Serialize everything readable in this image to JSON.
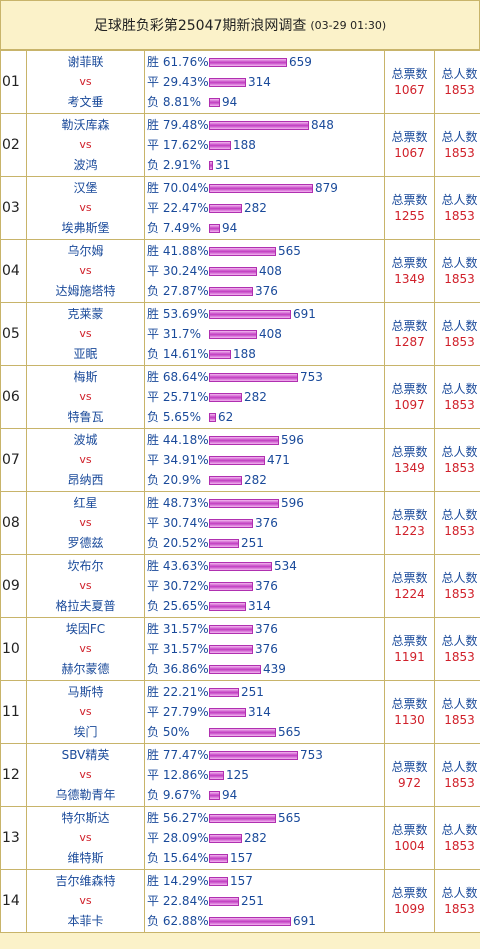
{
  "header": {
    "title": "足球胜负彩第25047期新浪网调查",
    "date": "(03-29 01:30)"
  },
  "labels": {
    "win": "胜",
    "draw": "平",
    "loss": "负",
    "vs": "vs",
    "total_votes": "总票数",
    "total_people": "总人数"
  },
  "matches": [
    {
      "no": "01",
      "home": "谢菲联",
      "away": "考文垂",
      "win_pct": "61.76%",
      "draw_pct": "29.43%",
      "loss_pct": "8.81%",
      "win": 659,
      "draw": 314,
      "loss": 94,
      "votes": "1067",
      "people": "1853"
    },
    {
      "no": "02",
      "home": "勒沃库森",
      "away": "波鸿",
      "win_pct": "79.48%",
      "draw_pct": "17.62%",
      "loss_pct": "2.91%",
      "win": 848,
      "draw": 188,
      "loss": 31,
      "votes": "1067",
      "people": "1853"
    },
    {
      "no": "03",
      "home": "汉堡",
      "away": "埃弗斯堡",
      "win_pct": "70.04%",
      "draw_pct": "22.47%",
      "loss_pct": "7.49%",
      "win": 879,
      "draw": 282,
      "loss": 94,
      "votes": "1255",
      "people": "1853"
    },
    {
      "no": "04",
      "home": "乌尔姆",
      "away": "达姆施塔特",
      "win_pct": "41.88%",
      "draw_pct": "30.24%",
      "loss_pct": "27.87%",
      "win": 565,
      "draw": 408,
      "loss": 376,
      "votes": "1349",
      "people": "1853"
    },
    {
      "no": "05",
      "home": "克莱蒙",
      "away": "亚眠",
      "win_pct": "53.69%",
      "draw_pct": "31.7%",
      "loss_pct": "14.61%",
      "win": 691,
      "draw": 408,
      "loss": 188,
      "votes": "1287",
      "people": "1853"
    },
    {
      "no": "06",
      "home": "梅斯",
      "away": "特鲁瓦",
      "win_pct": "68.64%",
      "draw_pct": "25.71%",
      "loss_pct": "5.65%",
      "win": 753,
      "draw": 282,
      "loss": 62,
      "votes": "1097",
      "people": "1853"
    },
    {
      "no": "07",
      "home": "波城",
      "away": "昂纳西",
      "win_pct": "44.18%",
      "draw_pct": "34.91%",
      "loss_pct": "20.9%",
      "win": 596,
      "draw": 471,
      "loss": 282,
      "votes": "1349",
      "people": "1853"
    },
    {
      "no": "08",
      "home": "红星",
      "away": "罗德兹",
      "win_pct": "48.73%",
      "draw_pct": "30.74%",
      "loss_pct": "20.52%",
      "win": 596,
      "draw": 376,
      "loss": 251,
      "votes": "1223",
      "people": "1853"
    },
    {
      "no": "09",
      "home": "坎布尔",
      "away": "格拉夫夏普",
      "win_pct": "43.63%",
      "draw_pct": "30.72%",
      "loss_pct": "25.65%",
      "win": 534,
      "draw": 376,
      "loss": 314,
      "votes": "1224",
      "people": "1853"
    },
    {
      "no": "10",
      "home": "埃因FC",
      "away": "赫尔蒙德",
      "win_pct": "31.57%",
      "draw_pct": "31.57%",
      "loss_pct": "36.86%",
      "win": 376,
      "draw": 376,
      "loss": 439,
      "votes": "1191",
      "people": "1853"
    },
    {
      "no": "11",
      "home": "马斯特",
      "away": "埃门",
      "win_pct": "22.21%",
      "draw_pct": "27.79%",
      "loss_pct": "50%",
      "win": 251,
      "draw": 314,
      "loss": 565,
      "votes": "1130",
      "people": "1853"
    },
    {
      "no": "12",
      "home": "SBV精英",
      "away": "乌德勒青年",
      "win_pct": "77.47%",
      "draw_pct": "12.86%",
      "loss_pct": "9.67%",
      "win": 753,
      "draw": 125,
      "loss": 94,
      "votes": "972",
      "people": "1853"
    },
    {
      "no": "13",
      "home": "特尔斯达",
      "away": "维特斯",
      "win_pct": "56.27%",
      "draw_pct": "28.09%",
      "loss_pct": "15.64%",
      "win": 565,
      "draw": 282,
      "loss": 157,
      "votes": "1004",
      "people": "1853"
    },
    {
      "no": "14",
      "home": "吉尔维森特",
      "away": "本菲卡",
      "win_pct": "14.29%",
      "draw_pct": "22.84%",
      "loss_pct": "62.88%",
      "win": 157,
      "draw": 251,
      "loss": 691,
      "votes": "1099",
      "people": "1853"
    }
  ]
}
